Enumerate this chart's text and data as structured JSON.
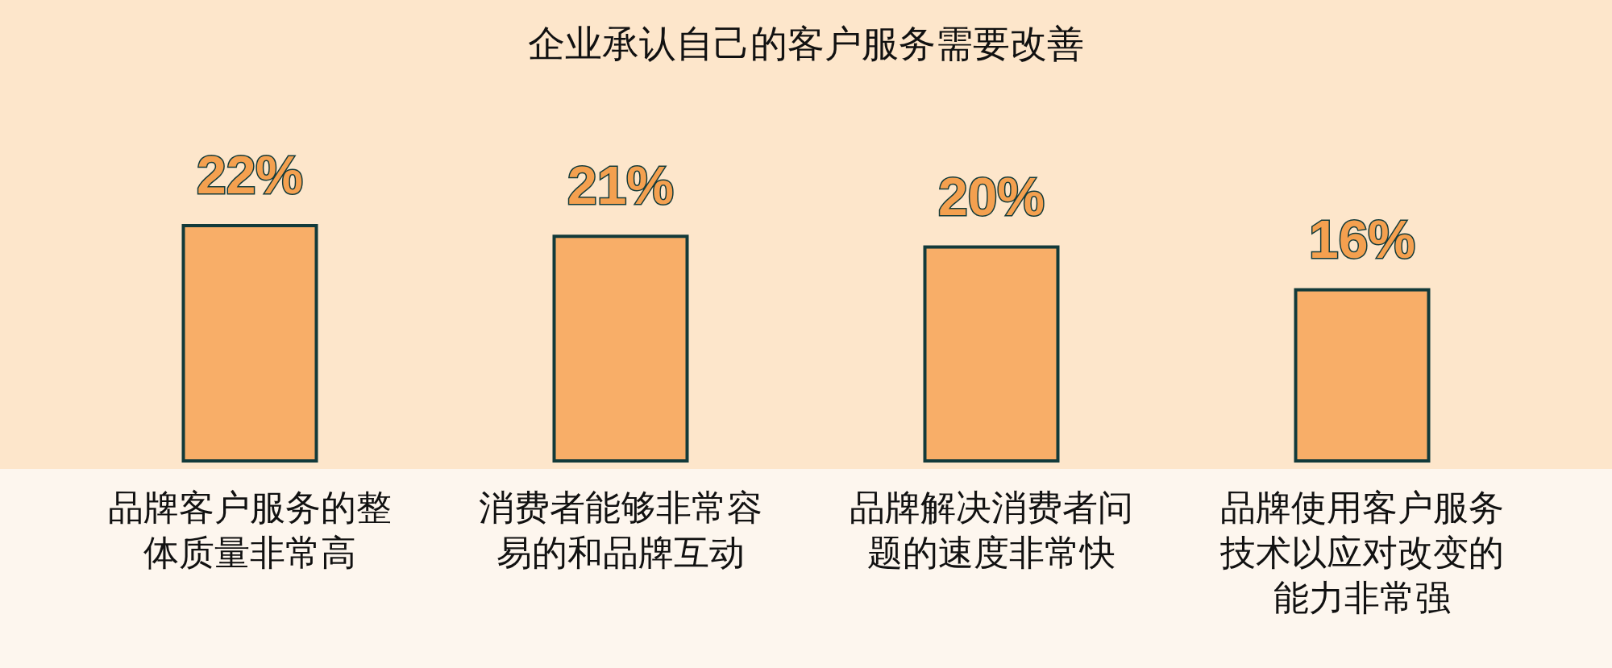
{
  "chart_data": {
    "type": "bar",
    "title": "企业承认自己的客户服务需要改善",
    "categories": [
      "品牌客户服务的整体质量非常高",
      "消费者能够非常容易的和品牌互动",
      "品牌解决消费者问题的速度非常快",
      "品牌使用客户服务技术以应对改变的能力非常强"
    ],
    "values": [
      22,
      21,
      20,
      16
    ],
    "value_labels": [
      "22%",
      "21%",
      "20%",
      "16%"
    ],
    "color": "#f8ae68",
    "relative": false
  }
}
